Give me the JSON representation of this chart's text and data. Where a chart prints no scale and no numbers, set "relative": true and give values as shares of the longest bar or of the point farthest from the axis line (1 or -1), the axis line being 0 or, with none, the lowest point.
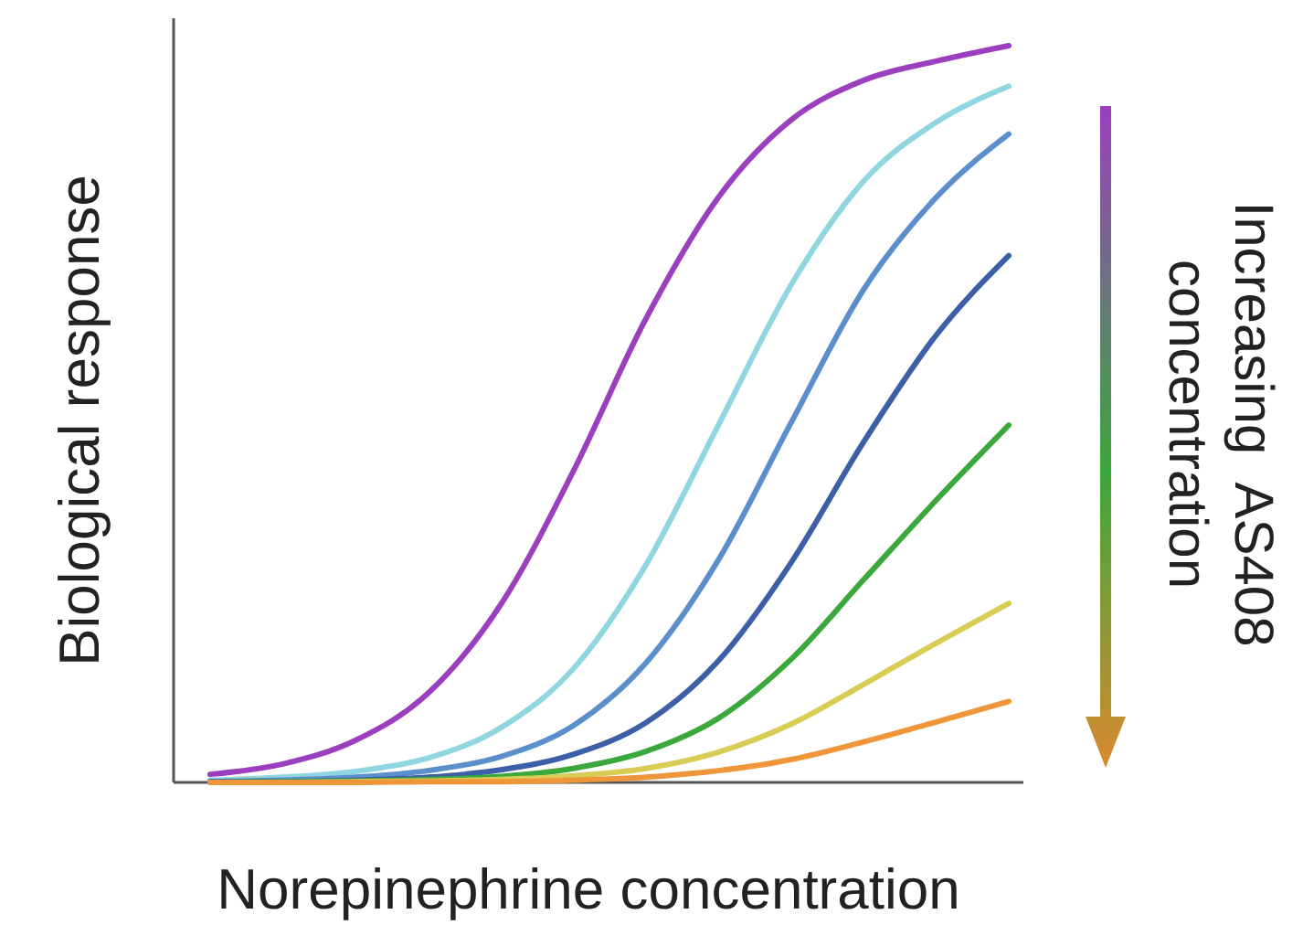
{
  "chart_data": {
    "type": "line",
    "relative": true,
    "xlabel": "Norepinephrine concentration",
    "ylabel": "Biological response",
    "annotations": [
      "Increasing  AS408",
      "concentration"
    ],
    "categories": [
      null,
      null,
      null,
      null,
      null,
      null,
      null,
      null,
      null,
      null,
      null,
      null
    ],
    "series": [
      {
        "color": "#9b3fbf",
        "values": [
          0.011,
          0.025,
          0.057,
          0.121,
          0.241,
          0.422,
          0.629,
          0.794,
          0.899,
          0.953,
          0.979,
          1.0
        ]
      },
      {
        "color": "#8fd6e0",
        "values": [
          0.003,
          0.007,
          0.015,
          0.033,
          0.074,
          0.154,
          0.295,
          0.485,
          0.675,
          0.816,
          0.896,
          0.945
        ]
      },
      {
        "color": "#5a8fcc",
        "values": [
          0.001,
          0.003,
          0.007,
          0.016,
          0.035,
          0.077,
          0.162,
          0.302,
          0.488,
          0.669,
          0.794,
          0.88
        ]
      },
      {
        "color": "#3d5fa8",
        "values": [
          0.001,
          0.001,
          0.003,
          0.007,
          0.017,
          0.038,
          0.081,
          0.165,
          0.298,
          0.462,
          0.607,
          0.715
        ]
      },
      {
        "color": "#3aa83a",
        "values": [
          0,
          0.001,
          0.002,
          0.004,
          0.008,
          0.019,
          0.042,
          0.087,
          0.167,
          0.275,
          0.383,
          0.485
        ]
      },
      {
        "color": "#d8cc55",
        "values": [
          0,
          0,
          0.001,
          0.002,
          0.004,
          0.009,
          0.019,
          0.041,
          0.079,
          0.133,
          0.189,
          0.243
        ]
      },
      {
        "color": "#f0963a",
        "values": [
          0,
          0,
          0,
          0.001,
          0.001,
          0.003,
          0.007,
          0.016,
          0.031,
          0.055,
          0.082,
          0.11
        ]
      }
    ]
  }
}
